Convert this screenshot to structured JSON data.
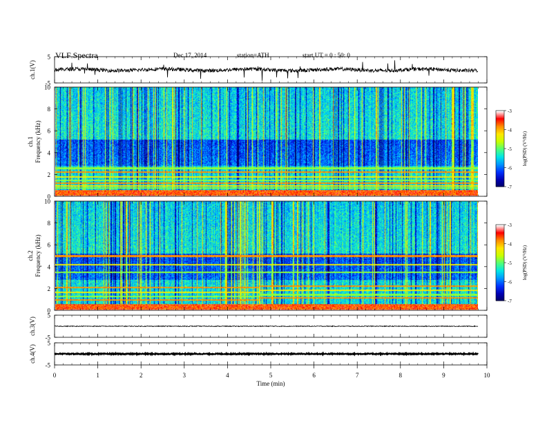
{
  "header": {
    "title": "VLF  Spectra",
    "date": "Dec.17, 2014",
    "station": "station=ATH",
    "start_ut": "start  UT =   0 : 50: 0"
  },
  "chart_data": [
    {
      "type": "line",
      "ylabel": "ch.1(V)",
      "ylim": [
        -5,
        5
      ],
      "yticks": [
        "5",
        "-5"
      ],
      "x": [
        0,
        9.8
      ],
      "description_values": {
        "baseline": 0,
        "noise": "spiky, about ±1 V"
      }
    },
    {
      "type": "heatmap",
      "ylabel_lines": [
        "ch.1",
        "Frequency  (kHz)"
      ],
      "ylim": [
        0,
        10
      ],
      "yticks": [
        "0",
        "2",
        "4",
        "6",
        "8",
        "10"
      ],
      "x_range": [
        0,
        9.8
      ],
      "colorbar": {
        "label": "log(PSD) (V²/Hz)",
        "range": [
          -7,
          -3
        ],
        "ticks": [
          "-3",
          "-4",
          "-5",
          "-6",
          "-7"
        ]
      },
      "bands_kHz": [
        0.2,
        0.35,
        0.5,
        0.8,
        1.0,
        1.25,
        1.5,
        1.8,
        2.25,
        2.6
      ]
    },
    {
      "type": "heatmap",
      "ylabel_lines": [
        "ch.2",
        "Frequency  (kHz)"
      ],
      "ylim": [
        0,
        10
      ],
      "yticks": [
        "0",
        "2",
        "4",
        "6",
        "8",
        "10"
      ],
      "x_range": [
        0,
        9.8
      ],
      "colorbar": {
        "label": "log(PSD) (V²/Hz)",
        "range": [
          -7,
          -3
        ],
        "ticks": [
          "-3",
          "-4",
          "-5",
          "-6",
          "-7"
        ]
      },
      "bands_kHz": [
        0.2,
        0.5,
        1.0,
        1.3,
        1.7,
        2.1,
        3.5,
        4.2,
        5.0
      ]
    },
    {
      "type": "line",
      "ylabel": "ch.3(V)",
      "ylim": [
        -5,
        5
      ],
      "yticks": [
        "5",
        "-5"
      ],
      "x": [
        0,
        9.8
      ],
      "description_values": {
        "baseline": 0
      }
    },
    {
      "type": "line",
      "ylabel": "ch.4(V)",
      "ylim": [
        -5,
        5
      ],
      "yticks": [
        "5",
        "-5"
      ],
      "x": [
        0,
        9.8
      ],
      "description_values": {
        "baseline": 0
      }
    }
  ],
  "xaxis": {
    "label": "Time  (min)",
    "range": [
      0,
      10
    ],
    "ticks": [
      "0",
      "1",
      "2",
      "3",
      "4",
      "5",
      "6",
      "7",
      "8",
      "9",
      "10"
    ]
  },
  "colors": {
    "colormap": [
      "#000064",
      "#0000b4",
      "#0032ff",
      "#0096ff",
      "#00e6e6",
      "#50ff78",
      "#c8ff00",
      "#ffe600",
      "#ff8c00",
      "#ff0000",
      "#ffffff"
    ]
  }
}
